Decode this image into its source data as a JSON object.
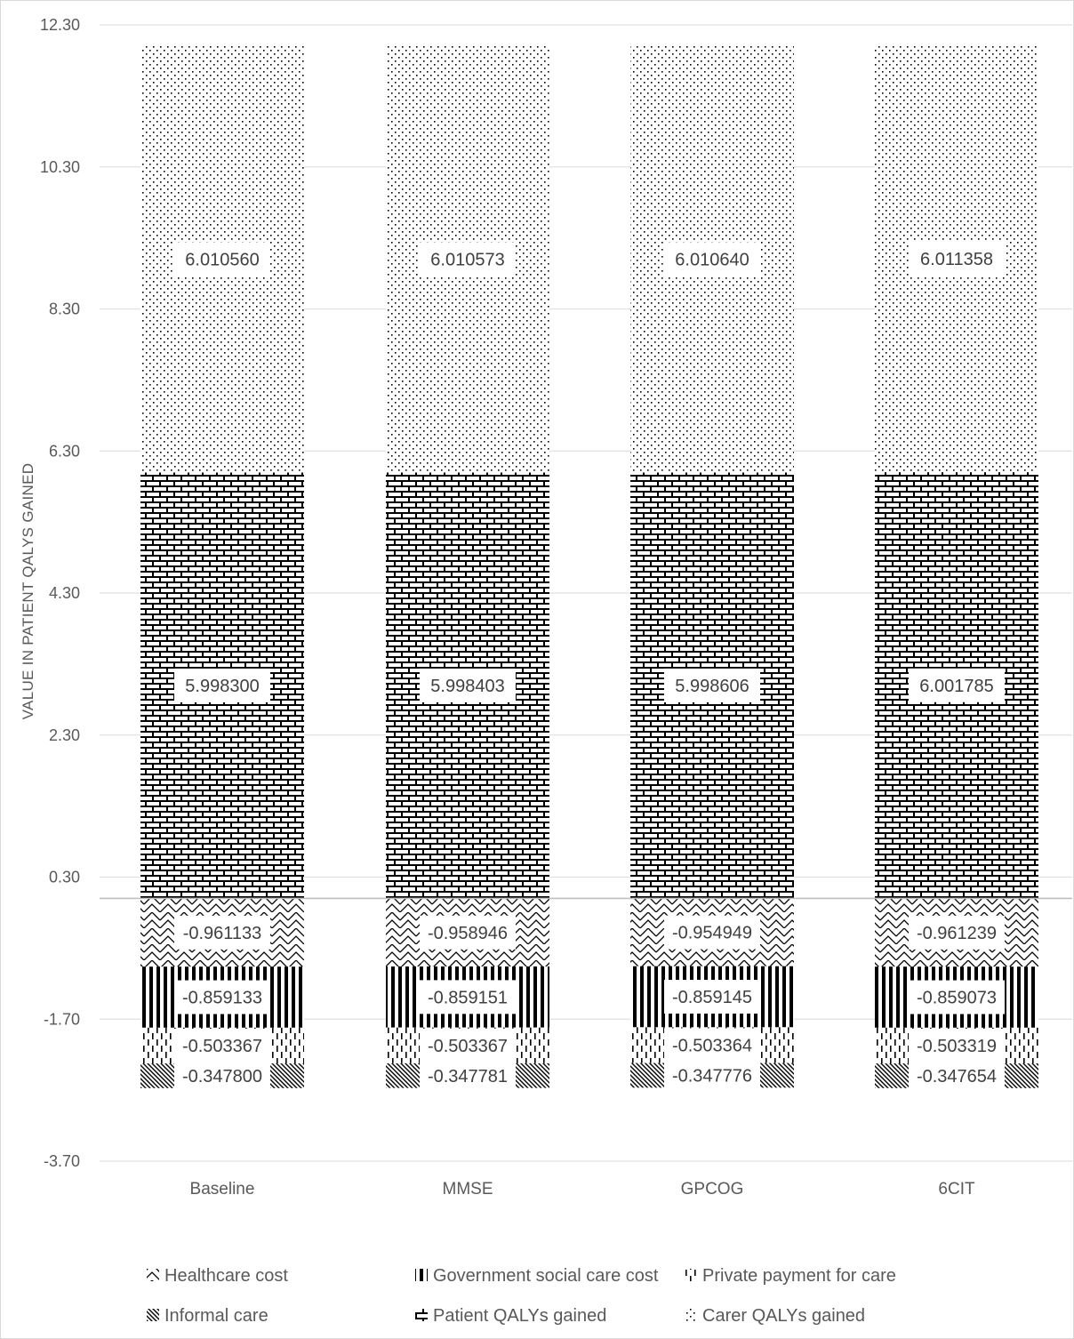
{
  "chart_data": {
    "type": "bar",
    "stacked": true,
    "categories": [
      "Baseline",
      "MMSE",
      "GPCOG",
      "6CIT"
    ],
    "ylabel": "VALUE IN PATIENT QALYS GAINED",
    "ylim": [
      -3.7,
      12.3
    ],
    "yticks": [
      "12.30",
      "10.30",
      "8.30",
      "6.30",
      "4.30",
      "2.30",
      "0.30",
      "-1.70",
      "-3.70"
    ],
    "grid": true,
    "legend_position": "bottom",
    "series": [
      {
        "name": "Healthcare cost",
        "pattern": "zigzag",
        "values": [
          -0.961133,
          -0.958946,
          -0.954949,
          -0.961239
        ],
        "labels": [
          "-0.961133",
          "-0.958946",
          "-0.954949",
          "-0.961239"
        ]
      },
      {
        "name": "Government social care cost",
        "pattern": "vertical-bars",
        "values": [
          -0.859133,
          -0.859151,
          -0.859145,
          -0.859073
        ],
        "labels": [
          "-0.859133",
          "-0.859151",
          "-0.859145",
          "-0.859073"
        ]
      },
      {
        "name": "Private payment for care",
        "pattern": "dashed-vertical",
        "values": [
          -0.503367,
          -0.503367,
          -0.503364,
          -0.503319
        ],
        "labels": [
          "-0.503367",
          "-0.503367",
          "-0.503364",
          "-0.503319"
        ]
      },
      {
        "name": "Informal care",
        "pattern": "diagonal",
        "values": [
          -0.3478,
          -0.347781,
          -0.347776,
          -0.347654
        ],
        "labels": [
          "-0.347800",
          "-0.347781",
          "-0.347776",
          "-0.347654"
        ]
      },
      {
        "name": "Patient QALYs gained",
        "pattern": "brick",
        "values": [
          5.9983,
          5.998403,
          5.998606,
          6.001785
        ],
        "labels": [
          "5.998300",
          "5.998403",
          "5.998606",
          "6.001785"
        ]
      },
      {
        "name": "Carer QALYs gained",
        "pattern": "dots",
        "values": [
          6.01056,
          6.010573,
          6.01064,
          6.011358
        ],
        "labels": [
          "6.010560",
          "6.010573",
          "6.010640",
          "6.011358"
        ]
      }
    ],
    "colors": {
      "pattern": "#000000",
      "text": "#595959",
      "grid": "#e0e0e0",
      "zero_line": "#bfbfbf"
    }
  }
}
